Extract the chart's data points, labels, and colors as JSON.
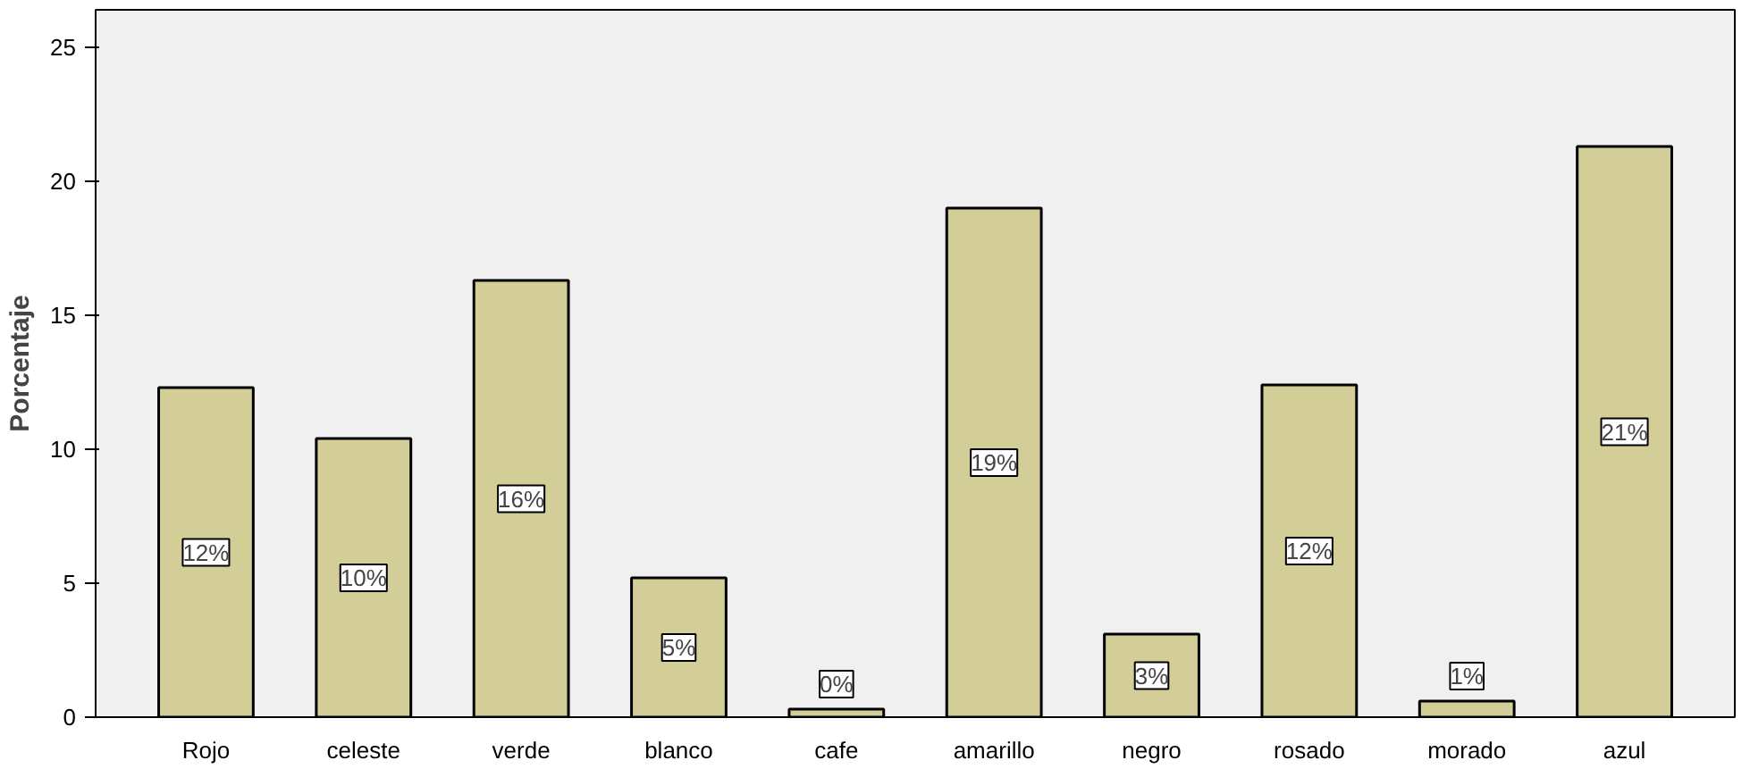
{
  "chart_data": {
    "type": "bar",
    "ylabel": "Porcentaje",
    "categories": [
      "Rojo",
      "celeste",
      "verde",
      "blanco",
      "cafe",
      "amarillo",
      "negro",
      "rosado",
      "morado",
      "azul"
    ],
    "values": [
      12.3,
      10.4,
      16.3,
      5.2,
      0.3,
      19.0,
      3.1,
      12.4,
      0.6,
      21.3
    ],
    "value_labels": [
      "12%",
      "10%",
      "16%",
      "5%",
      "0%",
      "19%",
      "3%",
      "12%",
      "1%",
      "21%"
    ],
    "color": "#d3ce97",
    "ylim": [
      0,
      26.4
    ],
    "yticks": [
      0,
      5,
      10,
      15,
      20,
      25
    ],
    "grid": false
  }
}
